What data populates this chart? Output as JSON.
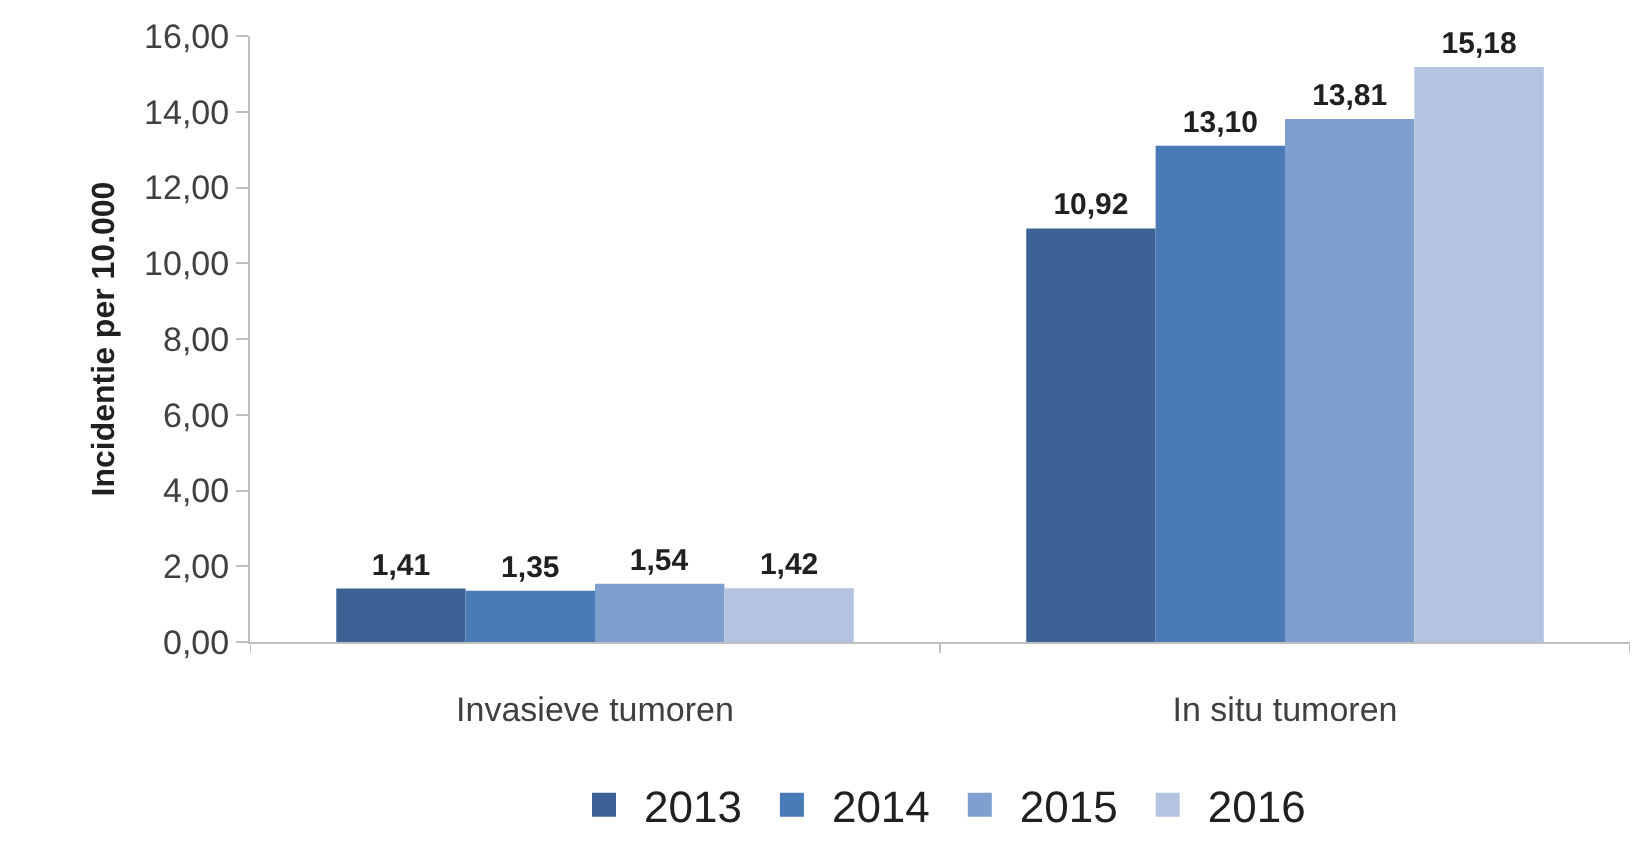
{
  "chart_data": {
    "type": "bar",
    "ylabel": "Incidentie per 10.000",
    "categories": [
      "Invasieve tumoren",
      "In situ tumoren"
    ],
    "series": [
      {
        "name": "2013",
        "color": "#3d6396",
        "values": [
          1.41,
          10.92
        ],
        "value_labels": [
          "1,41",
          "10,92"
        ]
      },
      {
        "name": "2014",
        "color": "#4a7ab5",
        "values": [
          1.35,
          13.1
        ],
        "value_labels": [
          "1,35",
          "13,10"
        ]
      },
      {
        "name": "2015",
        "color": "#7f9fcf",
        "values": [
          1.54,
          13.81
        ],
        "value_labels": [
          "1,54",
          "13,81"
        ]
      },
      {
        "name": "2016",
        "color": "#b3c3e0",
        "values": [
          1.42,
          15.18
        ],
        "value_labels": [
          "1,42",
          "15,18"
        ]
      }
    ],
    "ylim": [
      0,
      16
    ],
    "yticks": [
      {
        "value": 0,
        "label": "0,00"
      },
      {
        "value": 2,
        "label": "2,00"
      },
      {
        "value": 4,
        "label": "4,00"
      },
      {
        "value": 6,
        "label": "6,00"
      },
      {
        "value": 8,
        "label": "8,00"
      },
      {
        "value": 10,
        "label": "10,00"
      },
      {
        "value": 12,
        "label": "12,00"
      },
      {
        "value": 14,
        "label": "14,00"
      },
      {
        "value": 16,
        "label": "16,00"
      }
    ],
    "legend": "bottom"
  }
}
